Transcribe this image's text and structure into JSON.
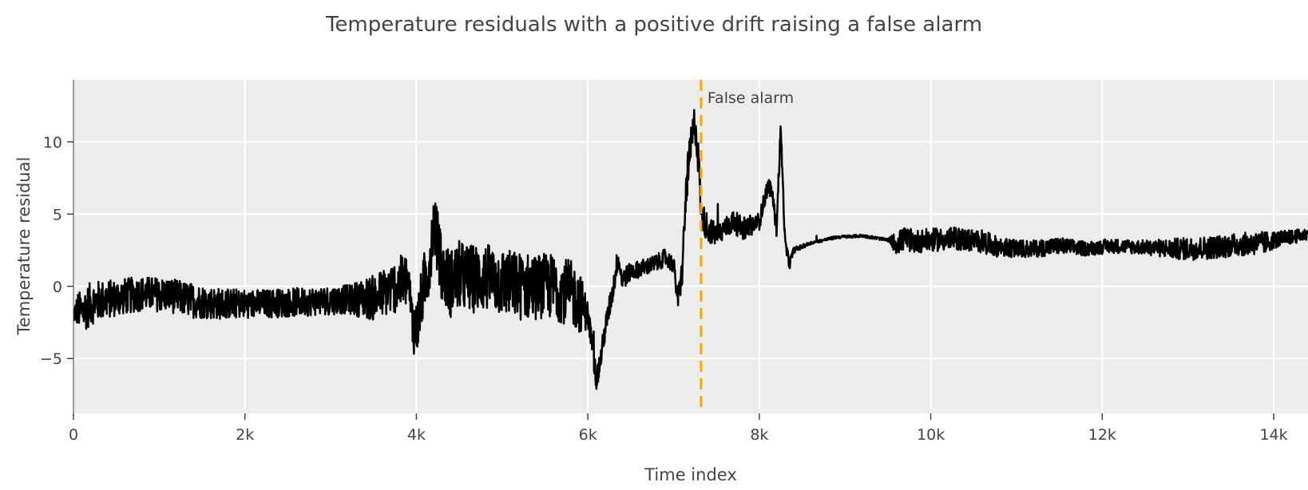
{
  "chart_data": {
    "type": "line",
    "title": "Temperature residuals with a positive drift raising a false alarm",
    "xlabel": "Time index",
    "ylabel": "Temperature residual",
    "xlim": [
      0,
      14400
    ],
    "ylim": [
      -8.8,
      14.3
    ],
    "x_ticks": [
      0,
      2000,
      4000,
      6000,
      8000,
      10000,
      12000,
      14000
    ],
    "x_tick_labels": [
      "0",
      "2k",
      "4k",
      "6k",
      "8k",
      "10k",
      "12k",
      "14k"
    ],
    "y_ticks": [
      -5,
      0,
      5,
      10
    ],
    "y_tick_labels": [
      "−5",
      "0",
      "5",
      "10"
    ],
    "grid": true,
    "series": [
      {
        "color": "#000000",
        "x": [
          0,
          50,
          100,
          200,
          300,
          500,
          800,
          1100,
          1400,
          1700,
          2000,
          2300,
          2600,
          2900,
          3200,
          3500,
          3700,
          3900,
          3950,
          4000,
          4100,
          4150,
          4200,
          4250,
          4300,
          4400,
          4500,
          4600,
          4800,
          5000,
          5200,
          5400,
          5600,
          5800,
          5900,
          6000,
          6050,
          6100,
          6150,
          6200,
          6300,
          6350,
          6400,
          6500,
          6600,
          6700,
          6800,
          6900,
          7000,
          7050,
          7100,
          7150,
          7200,
          7250,
          7300,
          7320,
          7400,
          7500,
          7600,
          7700,
          7800,
          7900,
          8000,
          8100,
          8150,
          8200,
          8250,
          8300,
          8350,
          8400,
          8600,
          8900,
          9200,
          9500,
          9600,
          9700,
          9800,
          10000,
          10300,
          10600,
          10800,
          11000,
          11200,
          11500,
          11800,
          12100,
          12500,
          12800,
          13000,
          13300,
          13600,
          13900,
          14000,
          14200,
          14400
        ],
        "y": [
          -2.0,
          -1.6,
          -1.8,
          -1.2,
          -1.0,
          -0.8,
          -0.5,
          -0.6,
          -1.0,
          -1.2,
          -1.2,
          -1.2,
          -1.1,
          -1.0,
          -0.9,
          -0.8,
          -0.2,
          0.5,
          -2.5,
          -3.0,
          0.5,
          1.5,
          4.5,
          3.0,
          1.0,
          0.2,
          0.8,
          0.5,
          0.6,
          0.3,
          0.0,
          0.0,
          0.0,
          -0.5,
          -1.0,
          -2.0,
          -4.0,
          -6.5,
          -5.0,
          -3.0,
          0.0,
          2.0,
          0.5,
          1.0,
          1.2,
          1.4,
          1.6,
          2.0,
          1.5,
          -1.0,
          1.0,
          7.0,
          9.5,
          11.5,
          8.0,
          5.0,
          4.0,
          3.5,
          4.0,
          4.5,
          4.0,
          4.2,
          4.5,
          7.0,
          6.5,
          4.0,
          11.0,
          3.0,
          1.5,
          2.5,
          3.0,
          3.4,
          3.5,
          3.2,
          3.0,
          3.3,
          3.1,
          3.2,
          3.3,
          3.1,
          2.7,
          2.6,
          2.6,
          2.8,
          2.6,
          2.8,
          2.7,
          2.6,
          2.6,
          2.7,
          2.9,
          3.0,
          3.2,
          3.4,
          3.6
        ],
        "noise_amplitude": [
          0.5,
          1.2,
          1.5,
          1.5,
          1.4,
          1.3,
          1.2,
          1.2,
          1.2,
          1.1,
          1.0,
          1.0,
          1.0,
          1.0,
          1.0,
          1.6,
          1.8,
          2.0,
          2.0,
          2.0,
          2.2,
          2.2,
          2.0,
          2.2,
          2.2,
          2.4,
          2.4,
          2.4,
          2.4,
          2.4,
          2.4,
          2.3,
          2.3,
          2.3,
          2.2,
          1.0,
          0.8,
          0.8,
          0.8,
          0.8,
          0.8,
          0.8,
          0.8,
          0.6,
          0.6,
          0.6,
          0.6,
          0.6,
          0.6,
          0.8,
          1.0,
          1.4,
          1.4,
          1.4,
          1.2,
          1.0,
          1.0,
          0.8,
          0.8,
          0.8,
          0.8,
          0.8,
          0.6,
          0.6,
          0.5,
          0.6,
          0.6,
          0.5,
          0.4,
          0.2,
          0.1,
          0.1,
          0.1,
          0.1,
          0.8,
          0.8,
          0.8,
          0.8,
          0.8,
          0.8,
          0.7,
          0.6,
          0.6,
          0.6,
          0.5,
          0.5,
          0.5,
          0.7,
          0.8,
          0.8,
          0.8,
          0.8,
          0.6,
          0.5,
          0.4
        ]
      }
    ],
    "vline": {
      "x": 7320,
      "color": "#ffa500",
      "style": "dashed",
      "label": "False alarm"
    },
    "colors": {
      "plot_background": "#ececec",
      "grid": "#ffffff",
      "line": "#000000",
      "alarm": "#ffa500",
      "text": "#444444"
    }
  }
}
